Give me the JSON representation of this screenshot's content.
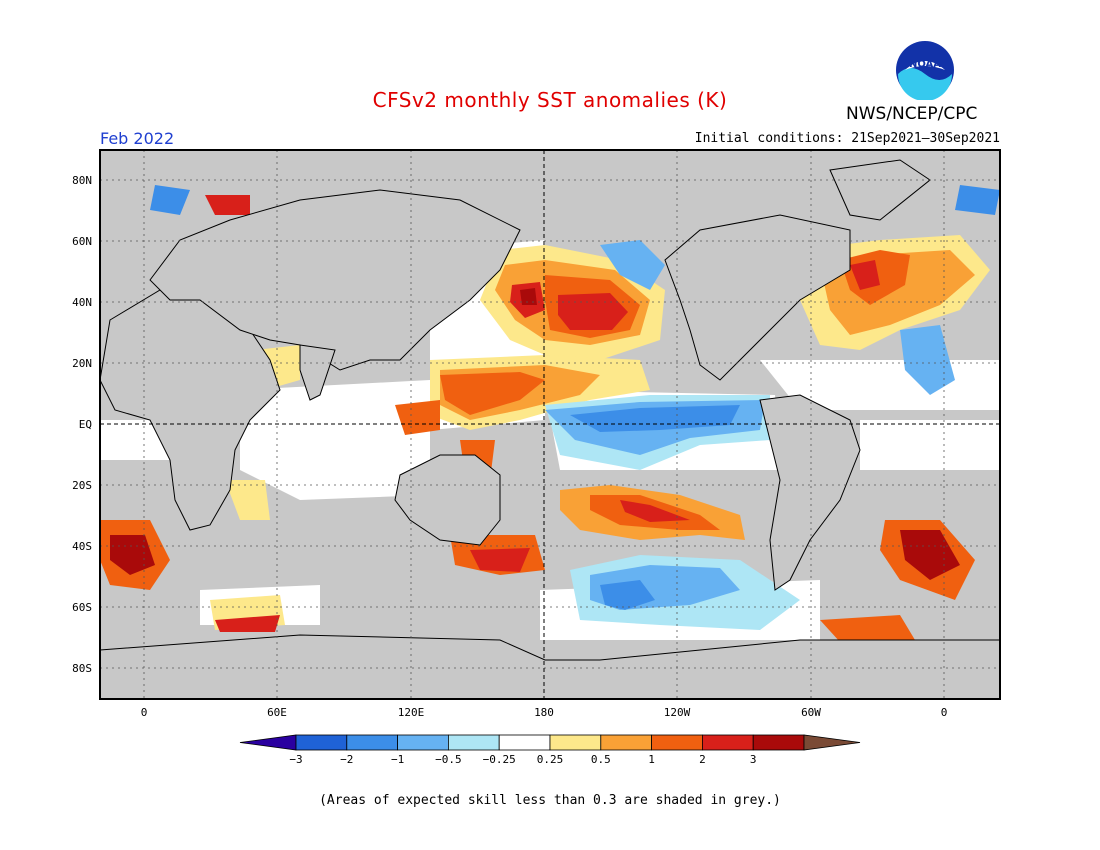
{
  "header": {
    "title": "CFSv2 monthly SST anomalies (K)",
    "month": "Feb 2022",
    "initial_conditions": "Initial conditions: 21Sep2021–30Sep2021",
    "org": "NWS/NCEP/CPC",
    "logo_text": "NOAA"
  },
  "axes": {
    "lat_labels": [
      "80N",
      "60N",
      "40N",
      "20N",
      "EQ",
      "20S",
      "40S",
      "60S",
      "80S"
    ],
    "lon_labels": [
      "0",
      "60E",
      "120E",
      "180",
      "120W",
      "60W",
      "0"
    ]
  },
  "colorbar": {
    "tick_labels": [
      "−3",
      "−2",
      "−1",
      "−0.5",
      "−0.25",
      "0.25",
      "0.5",
      "1",
      "2",
      "3"
    ],
    "colors": [
      "#2a00a0",
      "#1f62d6",
      "#3c8ee8",
      "#66b2f2",
      "#aee6f5",
      "#ffffff",
      "#fde88b",
      "#f9a136",
      "#f06010",
      "#d8201a",
      "#a90a0a",
      "#7a4a35"
    ]
  },
  "footnote": "(Areas of expected skill less than 0.3 are shaded in grey.)"
}
